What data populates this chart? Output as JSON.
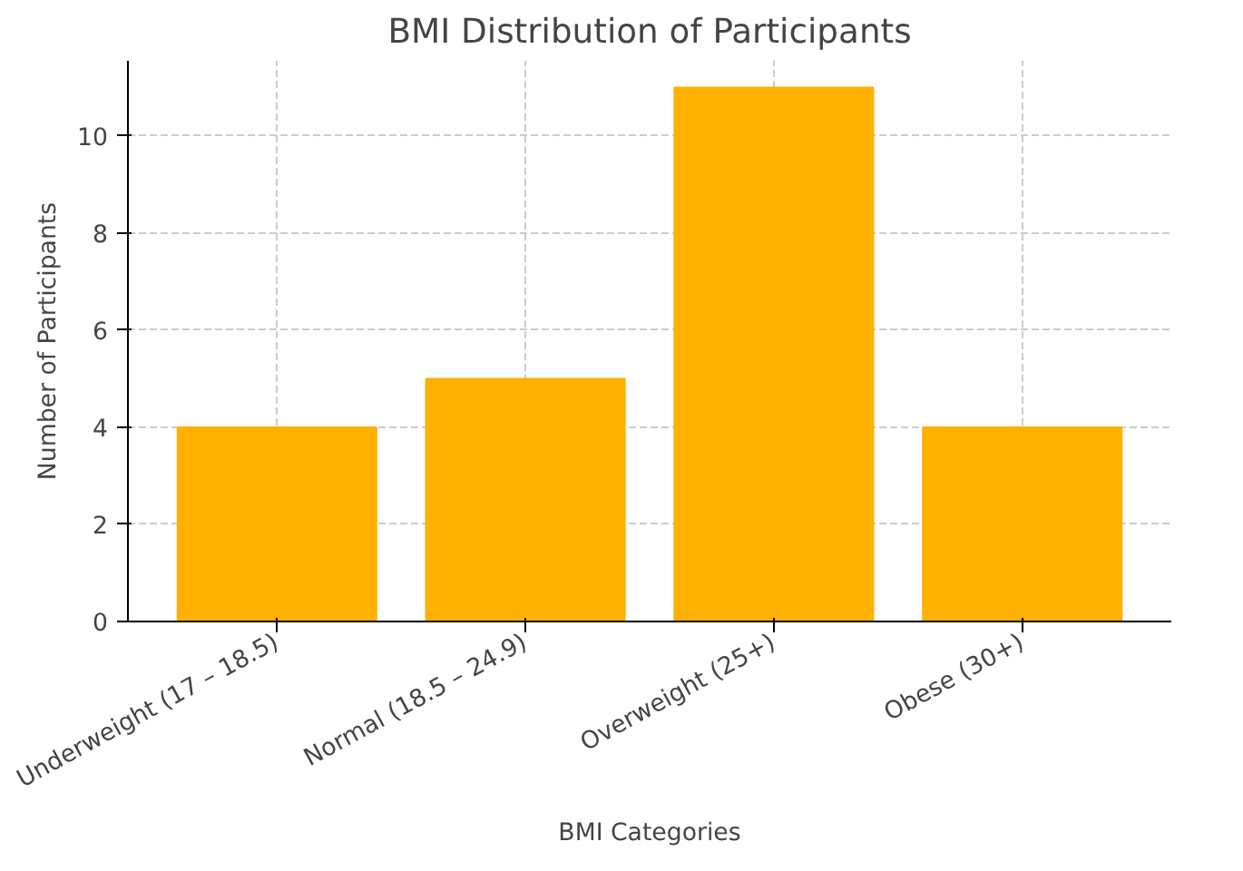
{
  "chart_data": {
    "type": "bar",
    "title": "BMI Distribution of Participants",
    "xlabel": "BMI Categories",
    "ylabel": "Number of Participants",
    "categories": [
      "Underweight (17 – 18.5)",
      "Normal (18.5 – 24.9)",
      "Overweight (25+)",
      "Obese (30+)"
    ],
    "values": [
      4,
      5,
      11,
      4
    ],
    "color": "#ffb000",
    "ylim": [
      0,
      11.55
    ],
    "yticks": [
      0,
      2,
      4,
      6,
      8,
      10
    ],
    "grid": true
  }
}
